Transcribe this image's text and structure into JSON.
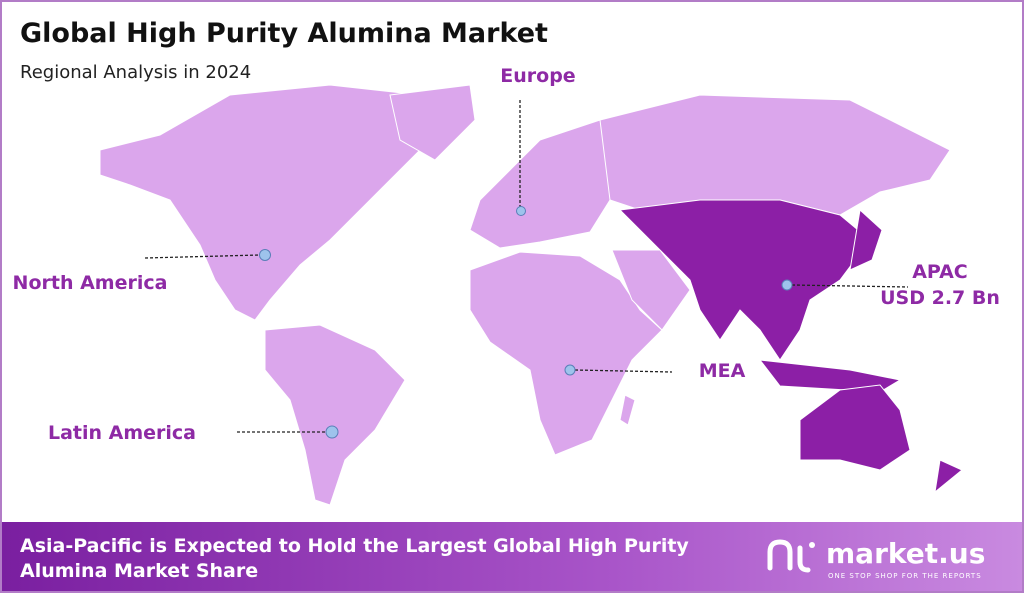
{
  "header": {
    "title": "Global High Purity Alumina Market",
    "subtitle": "Regional Analysis in 2024"
  },
  "regions": [
    {
      "label": "Europe"
    },
    {
      "label": "North America"
    },
    {
      "label": "Latin America"
    },
    {
      "label": "MEA"
    },
    {
      "label": "APAC",
      "value_label": "USD 2.7 Bn"
    }
  ],
  "footer": {
    "lines": [
      "Asia-Pacific is Expected to Hold the Largest Global High Purity",
      "Alumina Market Share"
    ],
    "logo": "market.us",
    "tagline": "ONE STOP SHOP FOR THE REPORTS"
  }
}
